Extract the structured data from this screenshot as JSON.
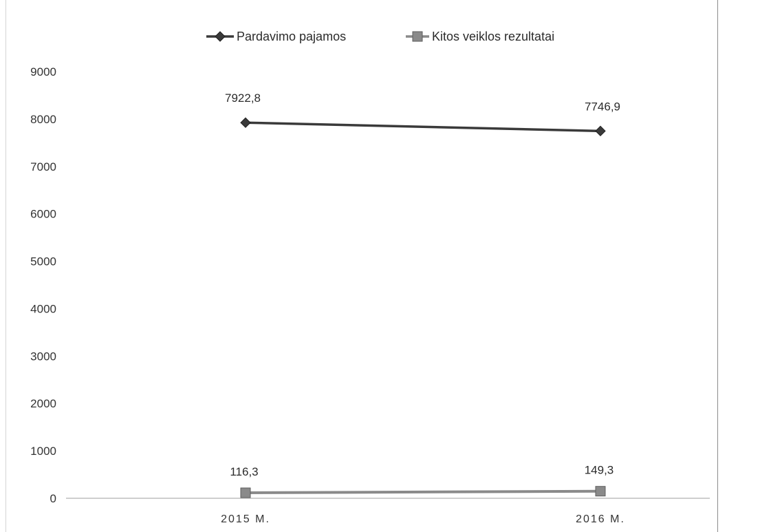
{
  "chart_data": {
    "type": "line",
    "categories": [
      "2015 M.",
      "2016 M."
    ],
    "series": [
      {
        "name": "Pardavimo pajamos",
        "values": [
          7922.8,
          7746.9
        ],
        "labels": [
          "7922,8",
          "7746,9"
        ],
        "marker": "diamond",
        "color": "#3a3a3a"
      },
      {
        "name": "Kitos veiklos rezultatai",
        "values": [
          116.3,
          149.3
        ],
        "labels": [
          "116,3",
          "149,3"
        ],
        "marker": "square",
        "color": "#8a8a8a"
      }
    ],
    "yticks": [
      "0",
      "1000",
      "2000",
      "3000",
      "4000",
      "5000",
      "6000",
      "7000",
      "8000",
      "9000"
    ],
    "ylim": [
      0,
      9000
    ],
    "legend_position": "top",
    "grid": false
  }
}
